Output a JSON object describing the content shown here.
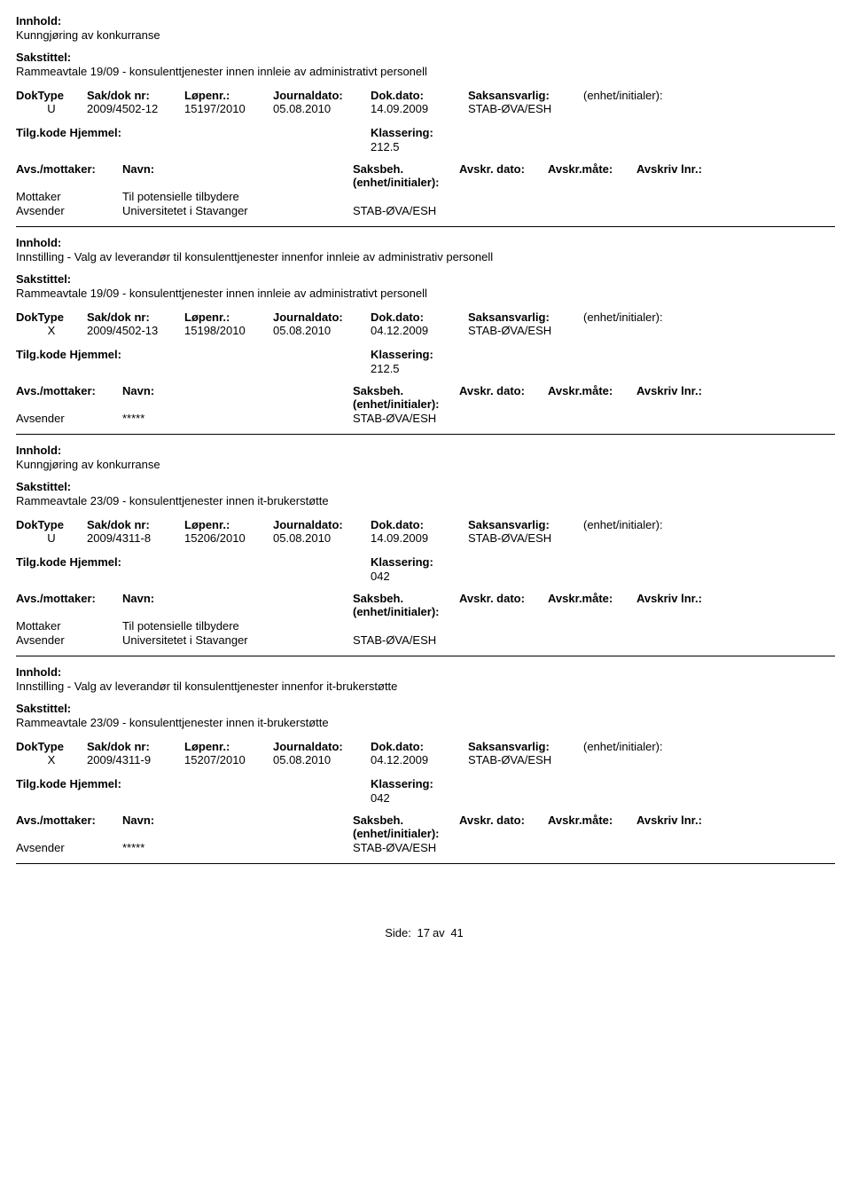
{
  "labels": {
    "innhold": "Innhold:",
    "sakstittel": "Sakstittel:",
    "doktype": "DokType",
    "sakdoknr": "Sak/dok nr:",
    "lopenr": "Løpenr.:",
    "journaldato": "Journaldato:",
    "dokdato": "Dok.dato:",
    "saksansvarlig": "Saksansvarlig:",
    "enhet": "(enhet/initialer):",
    "tilgkode": "Tilg.kode",
    "hjemmel": "Hjemmel:",
    "klassering": "Klassering:",
    "avsmottaker": "Avs./mottaker:",
    "navn": "Navn:",
    "saksbeh": "Saksbeh.(enhet/initialer):",
    "avskrdato": "Avskr. dato:",
    "avskrmaate": "Avskr.måte:",
    "avskrivlnr": "Avskriv lnr.:",
    "mottaker": "Mottaker",
    "avsender": "Avsender"
  },
  "entries": [
    {
      "innhold": "Kunngjøring av konkurranse",
      "sakstittel": "Rammeavtale 19/09 - konsulenttjenester innen innleie av administrativt personell",
      "doktype": "U",
      "sakdoknr": "2009/4502-12",
      "lopenr": "15197/2010",
      "journaldato": "05.08.2010",
      "dokdato": "14.09.2009",
      "saksansvarlig": "STAB-ØVA/ESH",
      "klassering": "212.5",
      "parties": [
        {
          "role": "Mottaker",
          "navn": "Til potensielle tilbydere",
          "saksbeh": ""
        },
        {
          "role": "Avsender",
          "navn": "Universitetet i Stavanger",
          "saksbeh": "STAB-ØVA/ESH"
        }
      ]
    },
    {
      "innhold": "Innstilling - Valg av leverandør til konsulenttjenester innenfor innleie av administrativ personell",
      "sakstittel": "Rammeavtale 19/09 - konsulenttjenester innen innleie av administrativt personell",
      "doktype": "X",
      "sakdoknr": "2009/4502-13",
      "lopenr": "15198/2010",
      "journaldato": "05.08.2010",
      "dokdato": "04.12.2009",
      "saksansvarlig": "STAB-ØVA/ESH",
      "klassering": "212.5",
      "parties": [
        {
          "role": "Avsender",
          "navn": "*****",
          "saksbeh": "STAB-ØVA/ESH"
        }
      ]
    },
    {
      "innhold": "Kunngjøring av konkurranse",
      "sakstittel": "Rammeavtale 23/09 - konsulenttjenester innen it-brukerstøtte",
      "doktype": "U",
      "sakdoknr": "2009/4311-8",
      "lopenr": "15206/2010",
      "journaldato": "05.08.2010",
      "dokdato": "14.09.2009",
      "saksansvarlig": "STAB-ØVA/ESH",
      "klassering": "042",
      "parties": [
        {
          "role": "Mottaker",
          "navn": "Til potensielle tilbydere",
          "saksbeh": ""
        },
        {
          "role": "Avsender",
          "navn": "Universitetet i Stavanger",
          "saksbeh": "STAB-ØVA/ESH"
        }
      ]
    },
    {
      "innhold": "Innstilling - Valg av leverandør til konsulenttjenester innenfor it-brukerstøtte",
      "sakstittel": "Rammeavtale 23/09 - konsulenttjenester innen it-brukerstøtte",
      "doktype": "X",
      "sakdoknr": "2009/4311-9",
      "lopenr": "15207/2010",
      "journaldato": "05.08.2010",
      "dokdato": "04.12.2009",
      "saksansvarlig": "STAB-ØVA/ESH",
      "klassering": "042",
      "parties": [
        {
          "role": "Avsender",
          "navn": "*****",
          "saksbeh": "STAB-ØVA/ESH"
        }
      ]
    }
  ],
  "footer": {
    "side_label": "Side:",
    "page": "17",
    "av": "av",
    "total": "41"
  }
}
